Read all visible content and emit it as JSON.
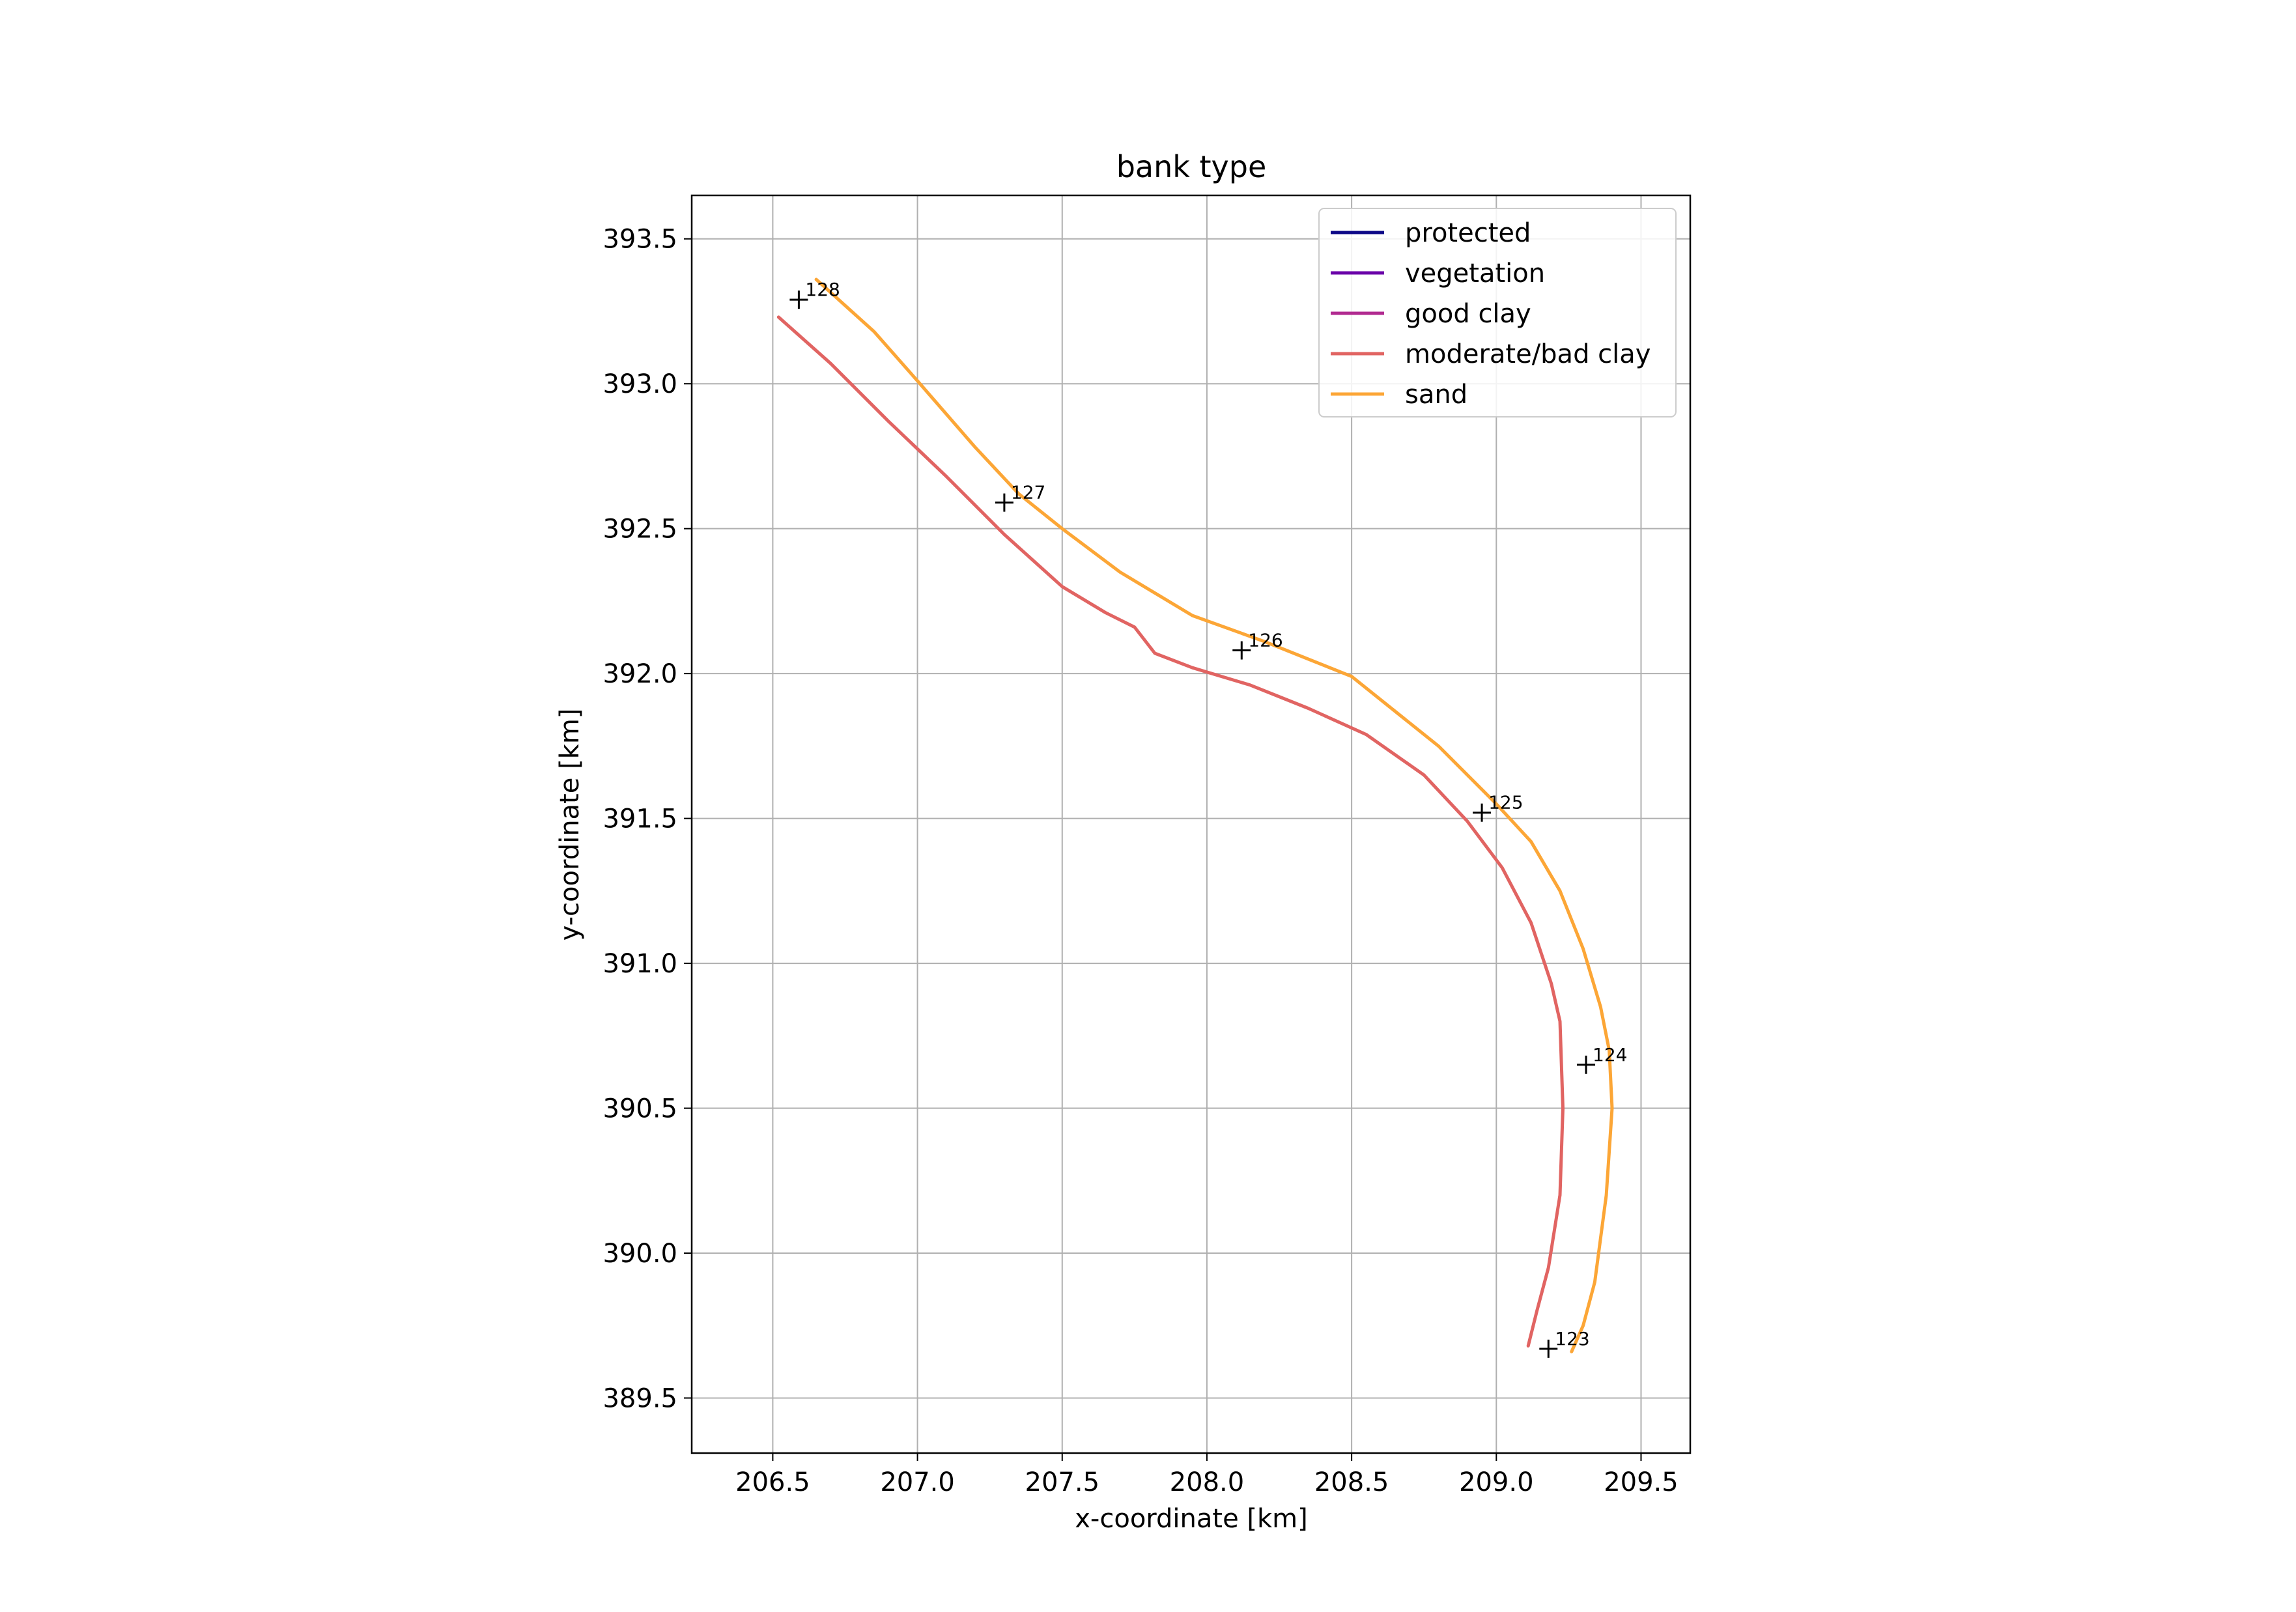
{
  "chart_data": {
    "type": "line",
    "title": "bank type",
    "xlabel": "x-coordinate [km]",
    "ylabel": "y-coordinate [km]",
    "xlim": [
      206.22,
      209.67
    ],
    "ylim": [
      389.31,
      393.65
    ],
    "xticks": [
      "206.5",
      "207.0",
      "207.5",
      "208.0",
      "208.5",
      "209.0",
      "209.5"
    ],
    "yticks": [
      "389.5",
      "390.0",
      "390.5",
      "391.0",
      "391.5",
      "392.0",
      "392.5",
      "393.0",
      "393.5"
    ],
    "grid": true,
    "legend_position": "upper-right",
    "legend": [
      {
        "name": "protected",
        "color": "#0d0887"
      },
      {
        "name": "vegetation",
        "color": "#6a00a8"
      },
      {
        "name": "good clay",
        "color": "#b12a90"
      },
      {
        "name": "moderate/bad clay",
        "color": "#e16462"
      },
      {
        "name": "sand",
        "color": "#fca636"
      }
    ],
    "series": [
      {
        "name": "sand",
        "color": "#fca636",
        "x": [
          206.65,
          206.85,
          207.0,
          207.2,
          207.35,
          207.5,
          207.7,
          207.95,
          208.2,
          208.5,
          208.8,
          209.0,
          209.12,
          209.22,
          209.3,
          209.36,
          209.39,
          209.4,
          209.38,
          209.34,
          209.3,
          209.26
        ],
        "y": [
          393.36,
          393.18,
          393.01,
          392.78,
          392.62,
          392.5,
          392.35,
          392.2,
          392.11,
          391.99,
          391.75,
          391.55,
          391.42,
          391.25,
          391.05,
          390.85,
          390.7,
          390.5,
          390.2,
          389.9,
          389.75,
          389.66
        ]
      },
      {
        "name": "moderate/bad clay",
        "color": "#e16462",
        "x": [
          206.52,
          206.7,
          206.9,
          207.1,
          207.3,
          207.5,
          207.65,
          207.75,
          207.82,
          207.95,
          208.15,
          208.35,
          208.55,
          208.75,
          208.9,
          209.02,
          209.12,
          209.19,
          209.22,
          209.23,
          209.22,
          209.18,
          209.14,
          209.11
        ],
        "y": [
          393.23,
          393.07,
          392.87,
          392.68,
          392.48,
          392.3,
          392.21,
          392.16,
          392.07,
          392.02,
          391.96,
          391.88,
          391.79,
          391.65,
          391.49,
          391.33,
          391.14,
          390.93,
          390.8,
          390.5,
          390.2,
          389.95,
          389.8,
          389.68
        ]
      }
    ],
    "markers": [
      {
        "label": "128",
        "x": 206.59,
        "y": 393.29
      },
      {
        "label": "127",
        "x": 207.3,
        "y": 392.59
      },
      {
        "label": "126",
        "x": 208.12,
        "y": 392.08
      },
      {
        "label": "125",
        "x": 208.95,
        "y": 391.52
      },
      {
        "label": "124",
        "x": 209.31,
        "y": 390.65
      },
      {
        "label": "123",
        "x": 209.18,
        "y": 389.67
      }
    ]
  }
}
